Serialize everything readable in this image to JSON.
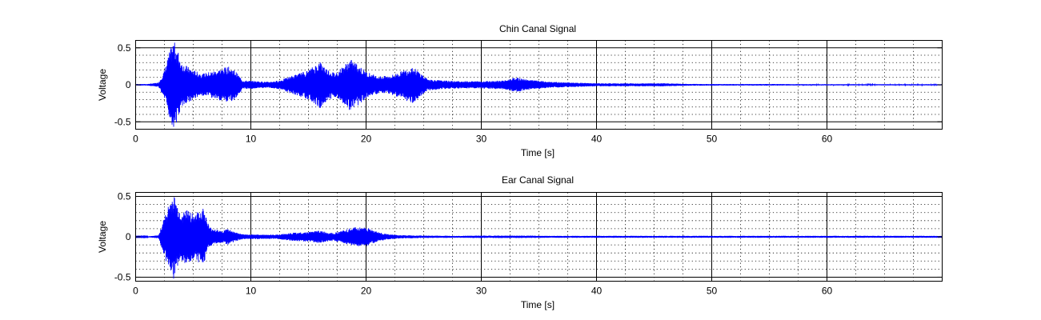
{
  "chart_data": [
    {
      "type": "line",
      "title": "Chin Canal Signal",
      "xlabel": "Time [s]",
      "ylabel": "Voltage",
      "xlim": [
        0,
        70
      ],
      "ylim": [
        -0.6,
        0.6
      ],
      "xticks": [
        "0",
        "10",
        "20",
        "30",
        "40",
        "50",
        "60"
      ],
      "yticks": [
        "0.5",
        "0",
        "-0.5"
      ],
      "grid": true,
      "series": [
        {
          "color": "#0000ff",
          "x": [
            0,
            1,
            2,
            2.5,
            3,
            3.3,
            3.6,
            4,
            5,
            5.8,
            6.5,
            7.5,
            8,
            8.6,
            9.3,
            10.5,
            11.5,
            12.5,
            13.5,
            15,
            16,
            16.6,
            17.3,
            18,
            18.6,
            19.3,
            20,
            21,
            22,
            23,
            24,
            24.6,
            25.3,
            26.5,
            28,
            30,
            32,
            33,
            34,
            36,
            38,
            40,
            42,
            44,
            46,
            48,
            50,
            55,
            60,
            65,
            70
          ],
          "envelope": [
            0.01,
            0.01,
            0.03,
            0.2,
            0.48,
            0.6,
            0.5,
            0.3,
            0.2,
            0.15,
            0.18,
            0.22,
            0.25,
            0.2,
            0.06,
            0.05,
            0.04,
            0.06,
            0.12,
            0.2,
            0.32,
            0.22,
            0.16,
            0.25,
            0.35,
            0.28,
            0.18,
            0.12,
            0.12,
            0.18,
            0.25,
            0.18,
            0.08,
            0.06,
            0.05,
            0.05,
            0.06,
            0.1,
            0.07,
            0.04,
            0.03,
            0.02,
            0.02,
            0.02,
            0.02,
            0.012,
            0.01,
            0.01,
            0.008,
            0.008,
            0.008
          ]
        }
      ]
    },
    {
      "type": "line",
      "title": "Ear Canal Signal",
      "xlabel": "Time [s]",
      "ylabel": "Voltage",
      "xlim": [
        0,
        70
      ],
      "ylim": [
        -0.55,
        0.55
      ],
      "xticks": [
        "0",
        "10",
        "20",
        "30",
        "40",
        "50",
        "60"
      ],
      "yticks": [
        "0.5",
        "0",
        "-0.5"
      ],
      "grid": true,
      "series": [
        {
          "color": "#0000ff",
          "x": [
            0,
            1,
            2,
            2.5,
            3,
            3.3,
            3.6,
            4,
            4.5,
            5,
            5.5,
            5.9,
            6.4,
            7.5,
            8,
            8.6,
            9.3,
            10.5,
            11.5,
            12.5,
            13.5,
            15,
            16,
            16.5,
            17.2,
            18,
            18.5,
            19,
            20,
            21,
            22,
            23,
            25,
            28,
            30,
            32,
            34,
            36,
            40,
            45,
            50,
            55,
            60,
            65,
            70
          ],
          "envelope": [
            0.005,
            0.005,
            0.02,
            0.25,
            0.45,
            0.52,
            0.4,
            0.3,
            0.35,
            0.28,
            0.32,
            0.35,
            0.12,
            0.07,
            0.1,
            0.06,
            0.03,
            0.03,
            0.025,
            0.03,
            0.05,
            0.06,
            0.08,
            0.06,
            0.05,
            0.08,
            0.1,
            0.12,
            0.12,
            0.06,
            0.03,
            0.02,
            0.015,
            0.012,
            0.015,
            0.015,
            0.015,
            0.012,
            0.012,
            0.012,
            0.012,
            0.012,
            0.012,
            0.012,
            0.012
          ]
        }
      ]
    }
  ]
}
